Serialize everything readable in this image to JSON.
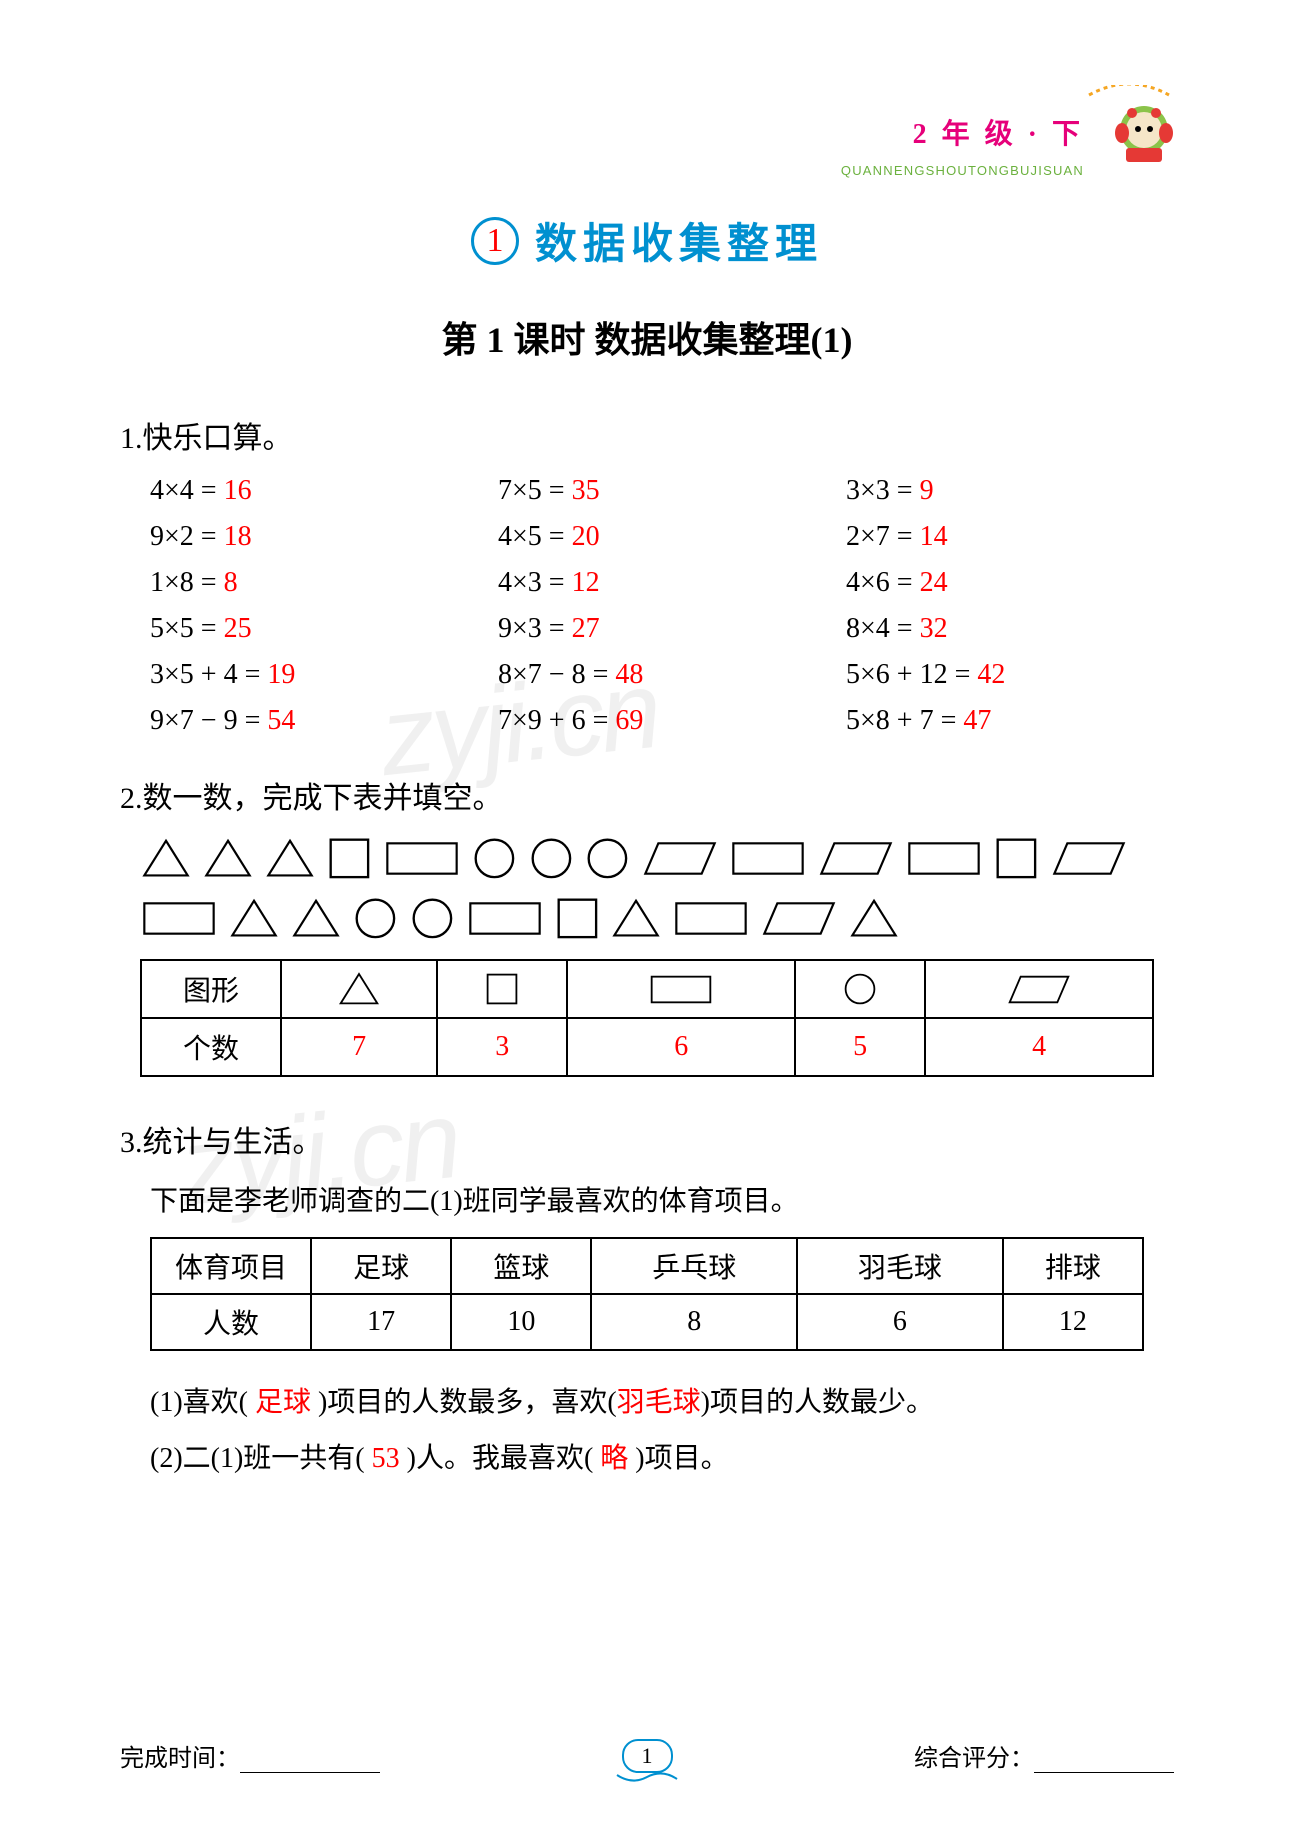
{
  "header": {
    "grade_label": "2 年 级 · 下",
    "pinyin": "QUANNENGSHOUTONGBUJISUAN",
    "grade_color": "#e6007a",
    "pinyin_color": "#6bb13e"
  },
  "chapter": {
    "number": "1",
    "title": "数据收集整理",
    "circle_border": "#0090d0",
    "number_color": "#ff0000",
    "title_color": "#0090d0"
  },
  "lesson": {
    "title": "第 1 课时  数据收集整理(1)"
  },
  "section1": {
    "title": "1.快乐口算。",
    "answer_color": "#ff0000",
    "items": [
      {
        "expr": "4×4 =",
        "ans": "16"
      },
      {
        "expr": "7×5 =",
        "ans": "35"
      },
      {
        "expr": "3×3 =",
        "ans": "9"
      },
      {
        "expr": "9×2 =",
        "ans": "18"
      },
      {
        "expr": "4×5 =",
        "ans": "20"
      },
      {
        "expr": "2×7 =",
        "ans": "14"
      },
      {
        "expr": "1×8 =",
        "ans": "8"
      },
      {
        "expr": "4×3 =",
        "ans": "12"
      },
      {
        "expr": "4×6 =",
        "ans": "24"
      },
      {
        "expr": "5×5 =",
        "ans": "25"
      },
      {
        "expr": "9×3 =",
        "ans": "27"
      },
      {
        "expr": "8×4 =",
        "ans": "32"
      },
      {
        "expr": "3×5 + 4 =",
        "ans": "19"
      },
      {
        "expr": "8×7 − 8 =",
        "ans": "48"
      },
      {
        "expr": "5×6 + 12 =",
        "ans": "42"
      },
      {
        "expr": "9×7 − 9 =",
        "ans": "54"
      },
      {
        "expr": "7×9 + 6 =",
        "ans": "69"
      },
      {
        "expr": "5×8 + 7 =",
        "ans": "47"
      }
    ]
  },
  "section2": {
    "title": "2.数一数，完成下表并填空。",
    "shapes_sequence": [
      "tri",
      "tri",
      "tri",
      "sq",
      "rect",
      "circ",
      "circ",
      "circ",
      "para",
      "rect",
      "para",
      "rect",
      "sq",
      "para",
      "rect",
      "tri",
      "tri",
      "circ",
      "circ",
      "rect",
      "sq",
      "tri",
      "rect",
      "para",
      "tri"
    ],
    "table": {
      "header_label": "图形",
      "row_label": "个数",
      "columns": [
        "tri",
        "sq",
        "rect",
        "circ",
        "para"
      ],
      "counts": [
        "7",
        "3",
        "6",
        "5",
        "4"
      ],
      "count_color": "#ff0000"
    },
    "shape_stroke": "#000000",
    "shape_stroke_width": 2
  },
  "section3": {
    "title": "3.统计与生活。",
    "intro": "下面是李老师调查的二(1)班同学最喜欢的体育项目。",
    "table": {
      "row1_label": "体育项目",
      "row2_label": "人数",
      "columns": [
        "足球",
        "篮球",
        "乒乓球",
        "羽毛球",
        "排球"
      ],
      "values": [
        "17",
        "10",
        "8",
        "6",
        "12"
      ]
    },
    "q1_pre": "(1)喜欢(  ",
    "q1_a1": "足球",
    "q1_mid": "  )项目的人数最多，喜欢(",
    "q1_a2": "羽毛球",
    "q1_post": ")项目的人数最少。",
    "q2_pre": "(2)二(1)班一共有(   ",
    "q2_a1": "53",
    "q2_mid": "   )人。我最喜欢(   ",
    "q2_a2": "略",
    "q2_post": "   )项目。",
    "answer_color": "#ff0000"
  },
  "footer": {
    "time_label": "完成时间：",
    "page_number": "1",
    "score_label": "综合评分：",
    "badge_border": "#0090d0"
  },
  "watermark": {
    "text": "zyji.cn",
    "color": "rgba(0,0,0,0.06)"
  }
}
